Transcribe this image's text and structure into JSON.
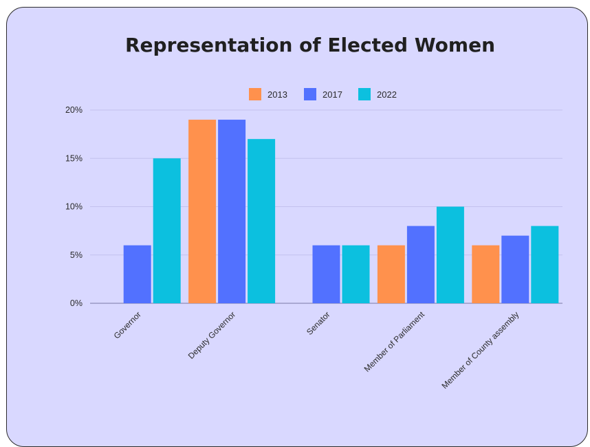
{
  "chart_data": {
    "type": "bar",
    "title": "Representation of Elected Women",
    "categories": [
      "Governor",
      "Deputy Governor",
      "Senator",
      "Member of Parliament",
      "Member of County assembly"
    ],
    "series": [
      {
        "name": "2013",
        "color": "#ff914d",
        "values": [
          0,
          19,
          0,
          6,
          6
        ]
      },
      {
        "name": "2017",
        "color": "#5271ff",
        "values": [
          6,
          19,
          6,
          8,
          7
        ]
      },
      {
        "name": "2022",
        "color": "#0cc0df",
        "values": [
          15,
          17,
          6,
          10,
          8
        ]
      }
    ],
    "ylim": [
      0,
      20
    ],
    "yticks": [
      0,
      5,
      10,
      15,
      20
    ],
    "ytick_labels": [
      "0%",
      "5%",
      "10%",
      "15%",
      "20%"
    ],
    "grid": true,
    "legend_position": "top-center",
    "background_color": "#d9d8ff"
  }
}
